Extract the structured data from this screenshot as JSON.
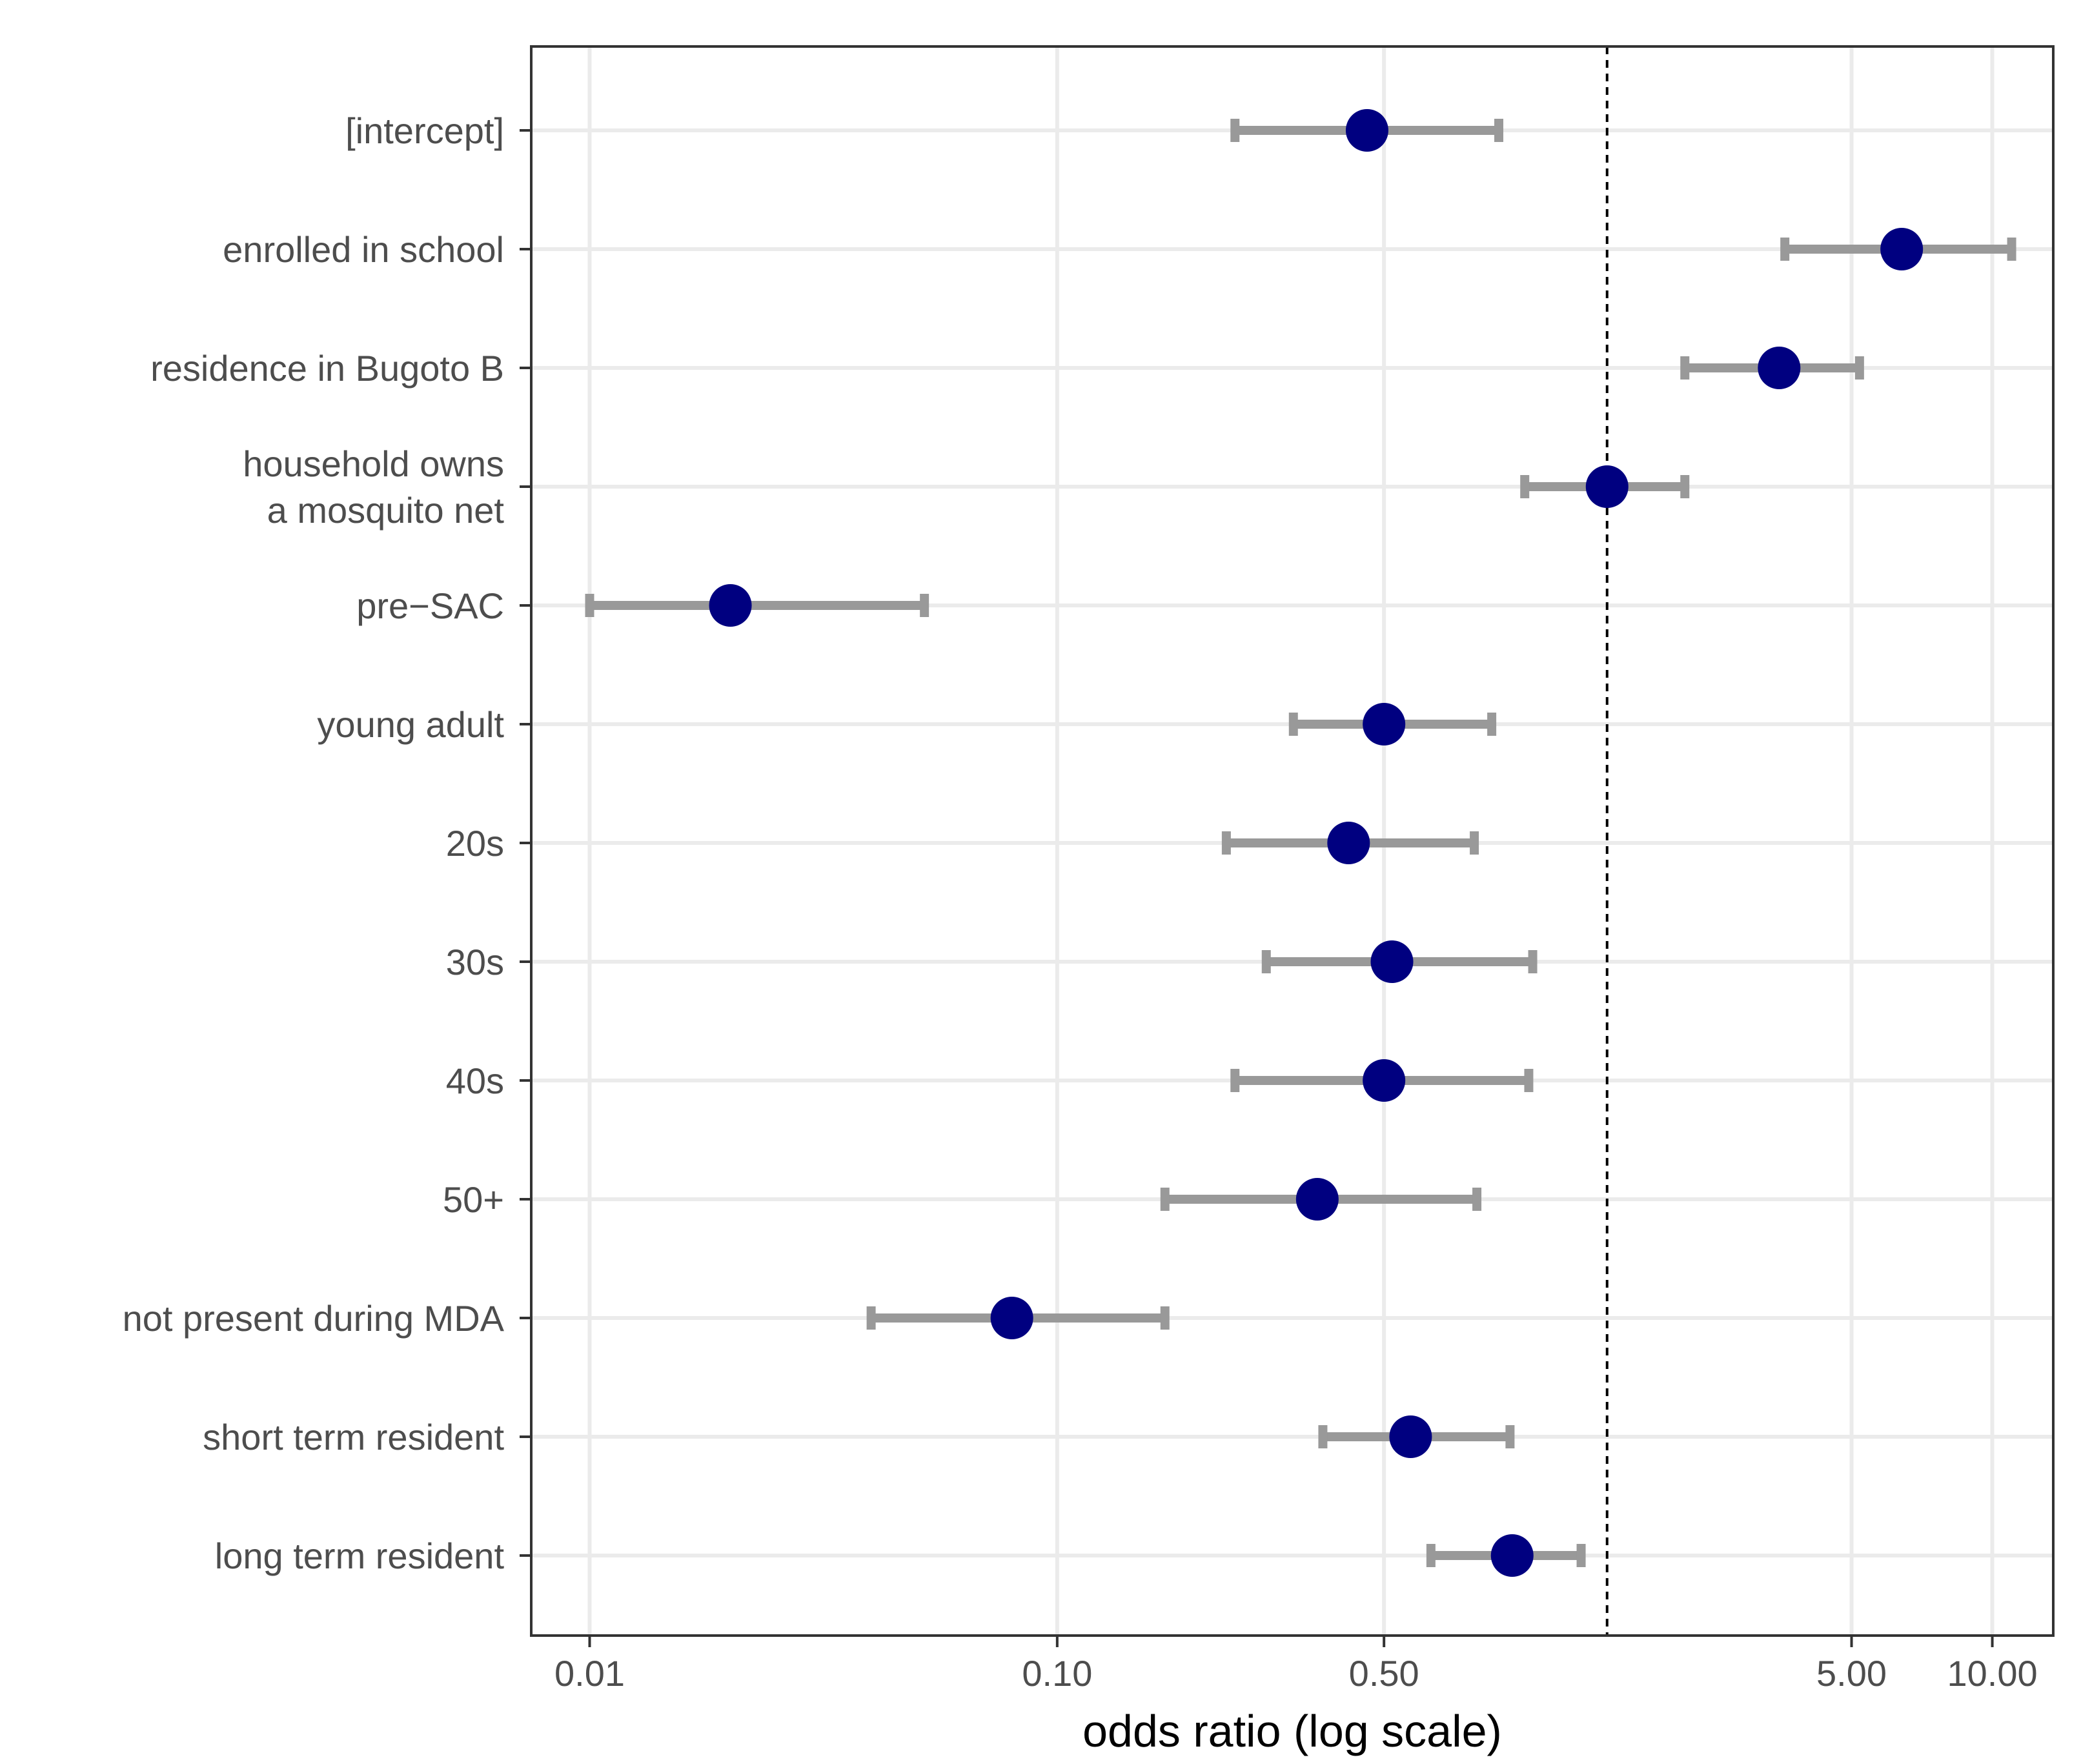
{
  "chart_data": {
    "type": "forest",
    "title": "",
    "xlabel": "odds ratio (log scale)",
    "ylabel": "",
    "x_scale": "log10",
    "xlim": [
      0.0075,
      13.5
    ],
    "x_ticks": [
      {
        "value": 0.01,
        "label": "0.01"
      },
      {
        "value": 0.1,
        "label": "0.10"
      },
      {
        "value": 0.5,
        "label": "0.50"
      },
      {
        "value": 5,
        "label": "5.00"
      },
      {
        "value": 10,
        "label": "10.00"
      }
    ],
    "reference_line": 1.5,
    "grid": true,
    "colors": {
      "point": "#000080",
      "interval": "#999999",
      "grid": "#ebebeb",
      "frame": "#333333"
    },
    "series": [
      {
        "label": "[intercept]",
        "estimate": 0.46,
        "lower": 0.24,
        "upper": 0.88
      },
      {
        "label": "enrolled in school",
        "estimate": 6.4,
        "lower": 3.6,
        "upper": 11.0
      },
      {
        "label": "residence in Bugoto B",
        "estimate": 3.5,
        "lower": 2.2,
        "upper": 5.2
      },
      {
        "label": "household owns\na mosquito net",
        "estimate": 1.5,
        "lower": 1.0,
        "upper": 2.2
      },
      {
        "label": "pre−SAC",
        "estimate": 0.02,
        "lower": 0.01,
        "upper": 0.052
      },
      {
        "label": "young adult",
        "estimate": 0.5,
        "lower": 0.32,
        "upper": 0.85
      },
      {
        "label": "20s",
        "estimate": 0.42,
        "lower": 0.23,
        "upper": 0.78
      },
      {
        "label": "30s",
        "estimate": 0.52,
        "lower": 0.28,
        "upper": 1.04
      },
      {
        "label": "40s",
        "estimate": 0.5,
        "lower": 0.24,
        "upper": 1.02
      },
      {
        "label": "50+",
        "estimate": 0.36,
        "lower": 0.17,
        "upper": 0.79
      },
      {
        "label": "not present during MDA",
        "estimate": 0.08,
        "lower": 0.04,
        "upper": 0.17
      },
      {
        "label": "short term resident",
        "estimate": 0.57,
        "lower": 0.37,
        "upper": 0.93
      },
      {
        "label": "long term resident",
        "estimate": 0.94,
        "lower": 0.63,
        "upper": 1.32
      }
    ]
  }
}
